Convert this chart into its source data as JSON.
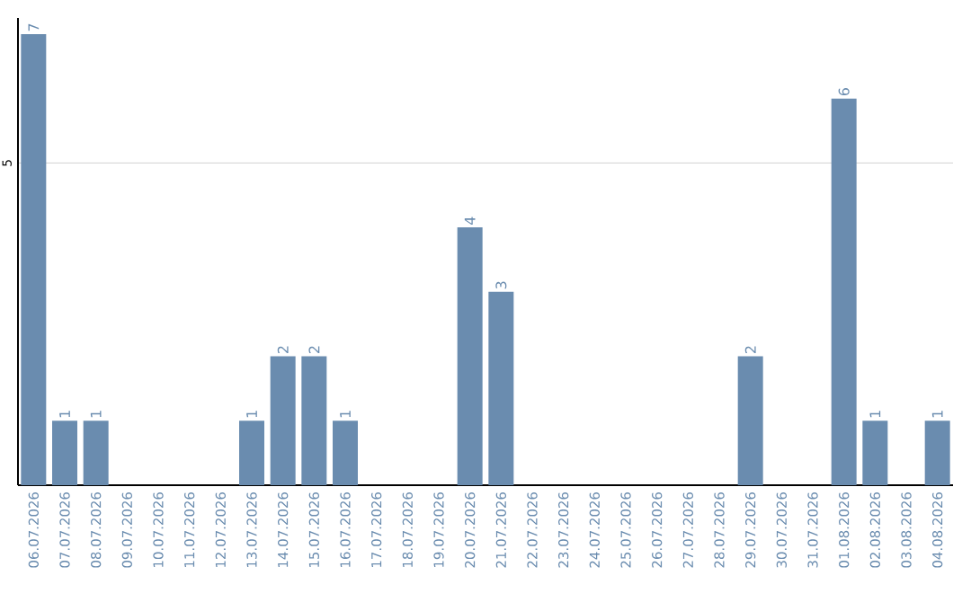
{
  "chart_data": {
    "type": "bar",
    "categories": [
      "06.07.2026",
      "07.07.2026",
      "08.07.2026",
      "09.07.2026",
      "10.07.2026",
      "11.07.2026",
      "12.07.2026",
      "13.07.2026",
      "14.07.2026",
      "15.07.2026",
      "16.07.2026",
      "17.07.2026",
      "18.07.2026",
      "19.07.2026",
      "20.07.2026",
      "21.07.2026",
      "22.07.2026",
      "23.07.2026",
      "24.07.2026",
      "25.07.2026",
      "26.07.2026",
      "27.07.2026",
      "28.07.2026",
      "29.07.2026",
      "30.07.2026",
      "31.07.2026",
      "01.08.2026",
      "02.08.2026",
      "03.08.2026",
      "04.08.2026"
    ],
    "values": [
      7,
      1,
      1,
      0,
      0,
      0,
      0,
      1,
      2,
      2,
      1,
      0,
      0,
      0,
      4,
      3,
      0,
      0,
      0,
      0,
      0,
      0,
      0,
      2,
      0,
      0,
      6,
      1,
      0,
      1
    ],
    "value_labels": [
      "7",
      "1",
      "1",
      null,
      null,
      null,
      null,
      "1",
      "2",
      "2",
      "1",
      null,
      null,
      null,
      "4",
      "3",
      null,
      null,
      null,
      null,
      null,
      null,
      null,
      "2",
      null,
      null,
      "6",
      "1",
      null,
      "1"
    ],
    "color": "#6a8caf",
    "ylim": [
      0,
      7.25
    ],
    "yticks": [
      5
    ],
    "grid": "y"
  }
}
